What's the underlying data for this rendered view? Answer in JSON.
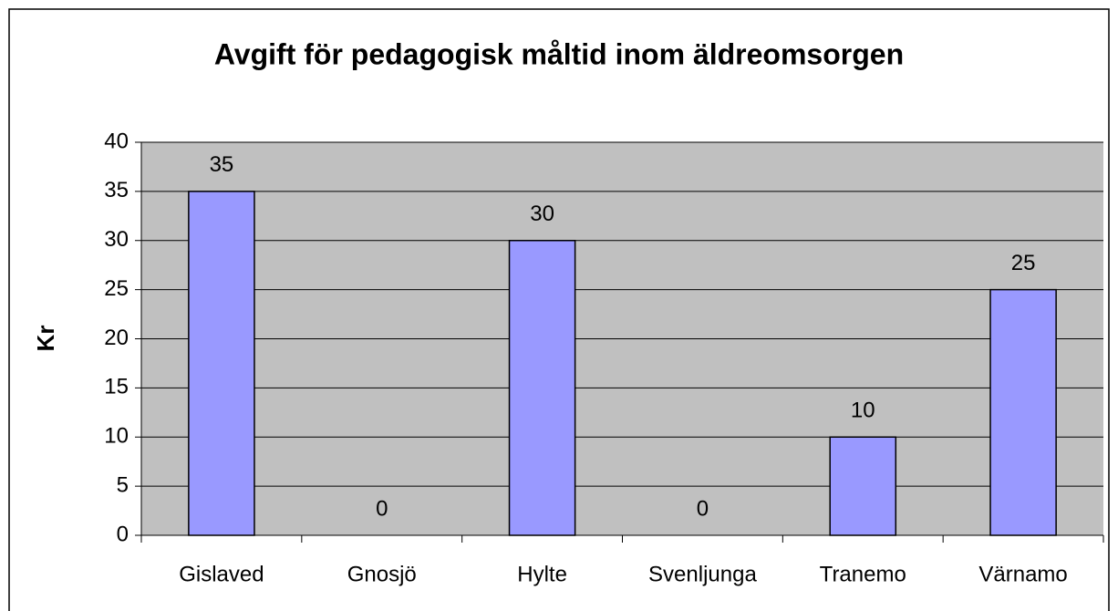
{
  "chart_data": {
    "type": "bar",
    "title": "Avgift för pedagogisk måltid inom äldreomsorgen",
    "y_label": "Kr",
    "categories": [
      "Gislaved",
      "Gnosjö",
      "Hylte",
      "Svenljunga",
      "Tranemo",
      "Värnamo"
    ],
    "values": [
      35,
      0,
      30,
      0,
      10,
      25
    ],
    "color": "#9999ff",
    "ylim": [
      0,
      40
    ],
    "yticks": [
      0,
      5,
      10,
      15,
      20,
      25,
      30,
      35,
      40
    ],
    "grid": true,
    "data_labels": true
  }
}
